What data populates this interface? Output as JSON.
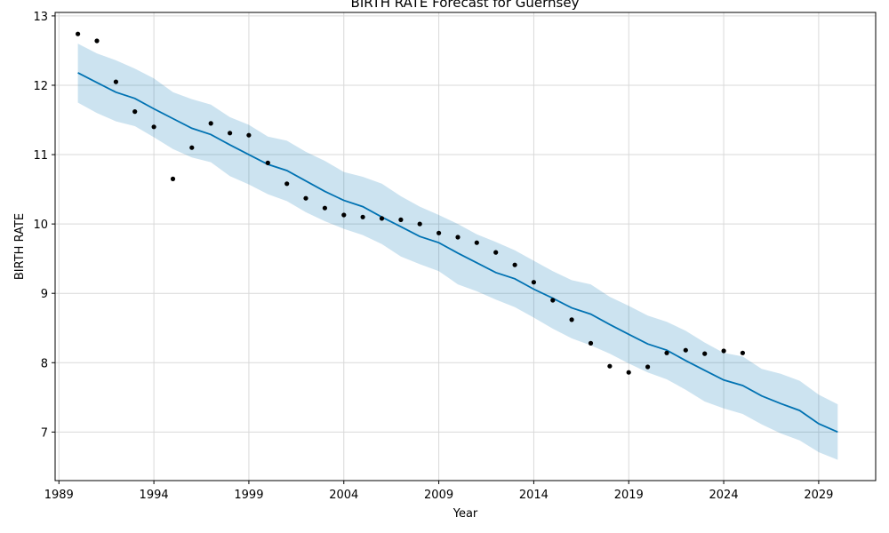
{
  "chart_data": {
    "type": "line",
    "title": "BIRTH RATE Forecast for Guernsey",
    "xlabel": "Year",
    "ylabel": "BIRTH RATE",
    "xlim": [
      1988.8,
      2032.0
    ],
    "ylim": [
      6.3,
      13.05
    ],
    "x_ticks": [
      1989,
      1994,
      1999,
      2004,
      2009,
      2014,
      2019,
      2024,
      2029
    ],
    "y_ticks": [
      7,
      8,
      9,
      10,
      11,
      12,
      13
    ],
    "grid": true,
    "colors": {
      "forecast_line": "#0072b2",
      "interval_fill": "#0072b2",
      "observed_points": "#000000"
    },
    "series": [
      {
        "kind": "observed",
        "x": [
          1990,
          1991,
          1992,
          1993,
          1994,
          1995,
          1996,
          1997,
          1998,
          1999,
          2000,
          2001,
          2002,
          2003,
          2004,
          2005,
          2006,
          2007,
          2008,
          2009,
          2010,
          2011,
          2012,
          2013,
          2014,
          2015,
          2016,
          2017,
          2018,
          2019,
          2020,
          2021,
          2022,
          2023,
          2024,
          2025
        ],
        "values": [
          12.74,
          12.64,
          12.05,
          11.62,
          11.4,
          10.65,
          11.1,
          11.45,
          11.31,
          11.28,
          10.88,
          10.58,
          10.37,
          10.23,
          10.13,
          10.1,
          10.08,
          10.06,
          10.0,
          9.87,
          9.81,
          9.73,
          9.59,
          9.41,
          9.16,
          8.9,
          8.62,
          8.28,
          7.95,
          7.86,
          7.94,
          8.14,
          8.18,
          8.13,
          8.17,
          8.14
        ]
      },
      {
        "kind": "forecast",
        "x": [
          1990,
          1991,
          1992,
          1993,
          1994,
          1995,
          1996,
          1997,
          1998,
          1999,
          2000,
          2001,
          2002,
          2003,
          2004,
          2005,
          2006,
          2007,
          2008,
          2009,
          2010,
          2011,
          2012,
          2013,
          2014,
          2015,
          2016,
          2017,
          2018,
          2019,
          2020,
          2021,
          2022,
          2023,
          2024,
          2025,
          2026,
          2027,
          2028,
          2029,
          2030
        ],
        "values": [
          12.18,
          12.04,
          11.9,
          11.81,
          11.66,
          11.52,
          11.38,
          11.29,
          11.14,
          11.0,
          10.86,
          10.77,
          10.62,
          10.47,
          10.34,
          10.25,
          10.1,
          9.96,
          9.82,
          9.73,
          9.58,
          9.44,
          9.3,
          9.21,
          9.06,
          8.93,
          8.79,
          8.7,
          8.55,
          8.41,
          8.27,
          8.18,
          8.03,
          7.89,
          7.75,
          7.67,
          7.52,
          7.41,
          7.31,
          7.12,
          7.0
        ],
        "lower": [
          11.75,
          11.6,
          11.48,
          11.41,
          11.25,
          11.08,
          10.96,
          10.89,
          10.69,
          10.57,
          10.43,
          10.33,
          10.17,
          10.04,
          9.93,
          9.84,
          9.71,
          9.53,
          9.42,
          9.32,
          9.13,
          9.03,
          8.91,
          8.8,
          8.65,
          8.49,
          8.35,
          8.25,
          8.13,
          7.99,
          7.86,
          7.76,
          7.61,
          7.44,
          7.34,
          7.26,
          7.11,
          6.98,
          6.88,
          6.71,
          6.6
        ],
        "upper": [
          12.6,
          12.46,
          12.36,
          12.24,
          12.1,
          11.9,
          11.8,
          11.72,
          11.54,
          11.43,
          11.26,
          11.2,
          11.04,
          10.91,
          10.75,
          10.68,
          10.58,
          10.4,
          10.25,
          10.13,
          10.0,
          9.85,
          9.74,
          9.62,
          9.47,
          9.32,
          9.19,
          9.13,
          8.95,
          8.82,
          8.68,
          8.59,
          8.46,
          8.29,
          8.14,
          8.09,
          7.91,
          7.84,
          7.74,
          7.54,
          7.4
        ]
      }
    ]
  }
}
